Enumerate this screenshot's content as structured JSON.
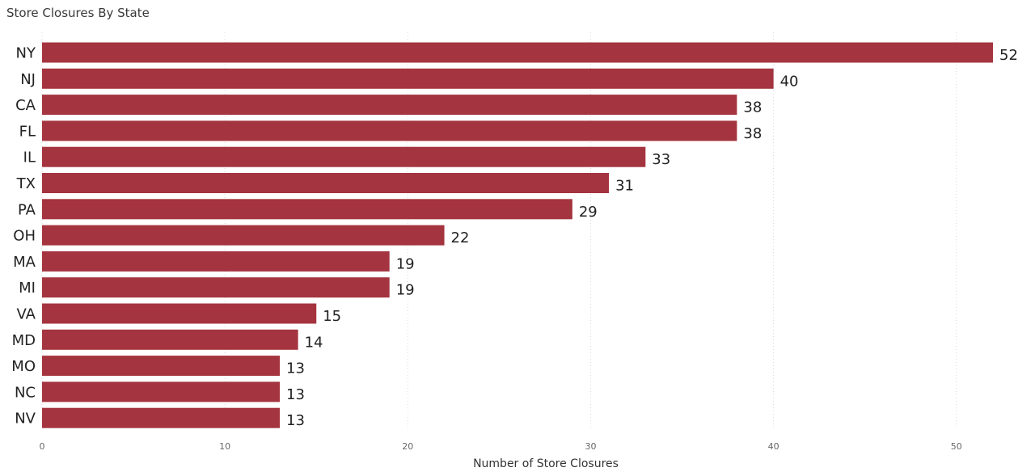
{
  "chart_data": {
    "type": "bar",
    "orientation": "horizontal",
    "title": "Store Closures By State",
    "xlabel": "Number of Store Closures",
    "ylabel": "",
    "categories": [
      "NY",
      "NJ",
      "CA",
      "FL",
      "IL",
      "TX",
      "PA",
      "OH",
      "MA",
      "MI",
      "VA",
      "MD",
      "MO",
      "NC",
      "NV"
    ],
    "values": [
      52,
      40,
      38,
      38,
      33,
      31,
      29,
      22,
      19,
      19,
      15,
      14,
      13,
      13,
      13
    ],
    "xlim": [
      0,
      52
    ],
    "xticks": [
      0,
      10,
      20,
      30,
      40,
      50
    ],
    "grid": true,
    "data_labels": true,
    "bar_color": "#A4343F"
  }
}
